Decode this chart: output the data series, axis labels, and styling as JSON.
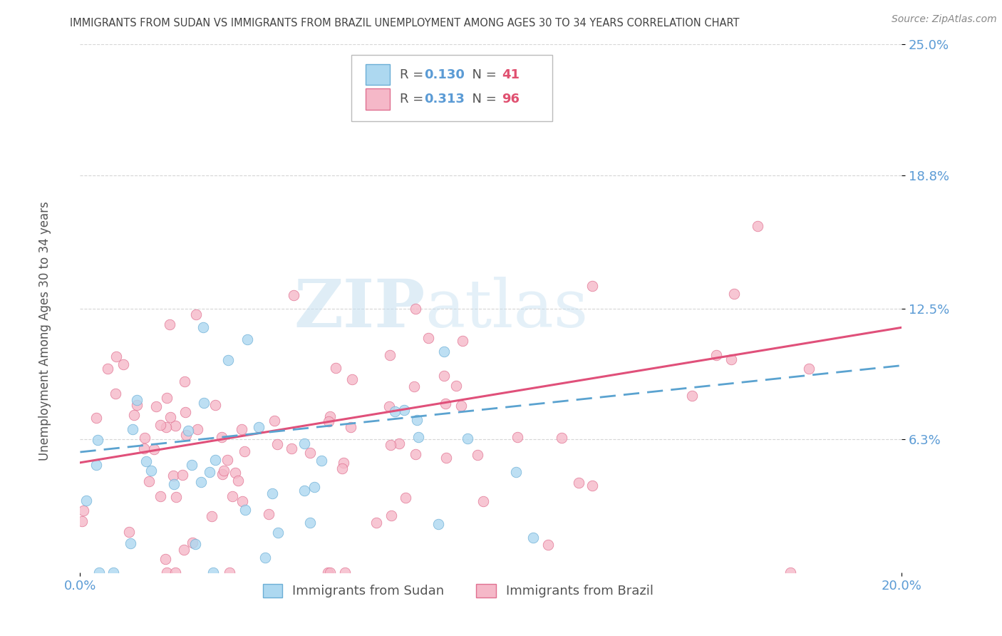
{
  "title": "IMMIGRANTS FROM SUDAN VS IMMIGRANTS FROM BRAZIL UNEMPLOYMENT AMONG AGES 30 TO 34 YEARS CORRELATION CHART",
  "source": "Source: ZipAtlas.com",
  "ylabel": "Unemployment Among Ages 30 to 34 years",
  "xlim": [
    0.0,
    0.2
  ],
  "ylim": [
    0.0,
    0.25
  ],
  "xtick_labels": [
    "0.0%",
    "20.0%"
  ],
  "xtick_vals": [
    0.0,
    0.2
  ],
  "ytick_labels": [
    "6.3%",
    "12.5%",
    "18.8%",
    "25.0%"
  ],
  "ytick_vals": [
    0.063,
    0.125,
    0.188,
    0.25
  ],
  "sudan_color": "#add8f0",
  "brazil_color": "#f5b8c8",
  "sudan_edge_color": "#6baed6",
  "brazil_edge_color": "#e07090",
  "sudan_line_color": "#5ba3d0",
  "brazil_line_color": "#e0507a",
  "sudan_R": 0.13,
  "sudan_N": 41,
  "brazil_R": 0.313,
  "brazil_N": 96,
  "watermark_zip": "ZIP",
  "watermark_atlas": "atlas",
  "legend_label_sudan": "Immigrants from Sudan",
  "legend_label_brazil": "Immigrants from Brazil",
  "background_color": "#ffffff",
  "grid_color": "#cccccc",
  "title_color": "#444444",
  "tick_color": "#5b9bd5",
  "R_color": "#5b9bd5",
  "N_color": "#e05070"
}
